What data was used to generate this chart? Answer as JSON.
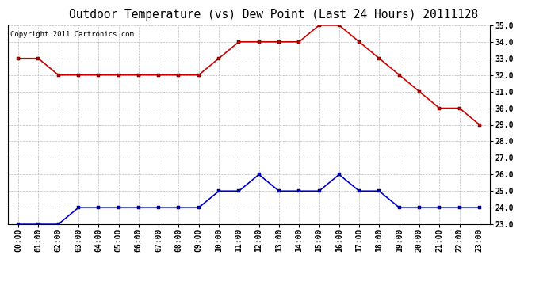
{
  "title": "Outdoor Temperature (vs) Dew Point (Last 24 Hours) 20111128",
  "copyright": "Copyright 2011 Cartronics.com",
  "x_labels": [
    "00:00",
    "01:00",
    "02:00",
    "03:00",
    "04:00",
    "05:00",
    "06:00",
    "07:00",
    "08:00",
    "09:00",
    "10:00",
    "11:00",
    "12:00",
    "13:00",
    "14:00",
    "15:00",
    "16:00",
    "17:00",
    "18:00",
    "19:00",
    "20:00",
    "21:00",
    "22:00",
    "23:00"
  ],
  "temp_data": [
    33.0,
    33.0,
    32.0,
    32.0,
    32.0,
    32.0,
    32.0,
    32.0,
    32.0,
    32.0,
    33.0,
    34.0,
    34.0,
    34.0,
    34.0,
    35.0,
    35.0,
    34.0,
    33.0,
    32.0,
    31.0,
    30.0,
    30.0,
    29.0
  ],
  "dew_data": [
    23.0,
    23.0,
    23.0,
    24.0,
    24.0,
    24.0,
    24.0,
    24.0,
    24.0,
    24.0,
    25.0,
    25.0,
    26.0,
    25.0,
    25.0,
    25.0,
    26.0,
    25.0,
    25.0,
    24.0,
    24.0,
    24.0,
    24.0,
    24.0
  ],
  "temp_color": "#cc0000",
  "dew_color": "#0000cc",
  "ylim_min": 23.0,
  "ylim_max": 35.0,
  "yticks": [
    23.0,
    24.0,
    25.0,
    26.0,
    27.0,
    28.0,
    29.0,
    30.0,
    31.0,
    32.0,
    33.0,
    34.0,
    35.0
  ],
  "bg_color": "#ffffff",
  "grid_color": "#bbbbbb",
  "title_fontsize": 10.5,
  "copyright_fontsize": 6.5,
  "tick_fontsize": 7,
  "marker_size": 3,
  "line_width": 1.2
}
